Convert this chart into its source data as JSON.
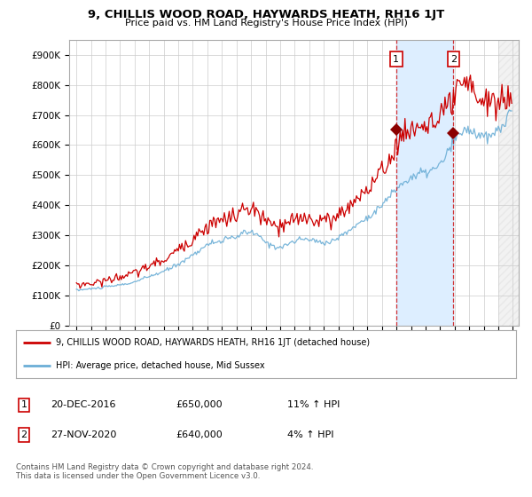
{
  "title": "9, CHILLIS WOOD ROAD, HAYWARDS HEATH, RH16 1JT",
  "subtitle": "Price paid vs. HM Land Registry's House Price Index (HPI)",
  "hpi_color": "#6baed6",
  "price_color": "#cc0000",
  "shade_color": "#ddeeff",
  "legend_property": "9, CHILLIS WOOD ROAD, HAYWARDS HEATH, RH16 1JT (detached house)",
  "legend_hpi": "HPI: Average price, detached house, Mid Sussex",
  "table_row1": [
    "1",
    "20-DEC-2016",
    "£650,000",
    "11% ↑ HPI"
  ],
  "table_row2": [
    "2",
    "27-NOV-2020",
    "£640,000",
    "4% ↑ HPI"
  ],
  "footnote": "Contains HM Land Registry data © Crown copyright and database right 2024.\nThis data is licensed under the Open Government Licence v3.0.",
  "marker1_x": 2016.97,
  "marker2_x": 2020.92,
  "marker1_price": 650000,
  "marker2_price": 640000,
  "future_shade_start": 2024.0,
  "ylim": [
    0,
    950000
  ],
  "xlim_left": 1994.5,
  "xlim_right": 2025.4
}
